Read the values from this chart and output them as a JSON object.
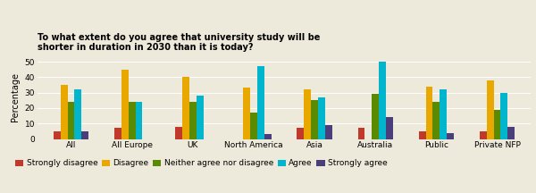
{
  "title": "To what extent do you agree that university study will be\nshorter in duration in 2030 than it is today?",
  "ylabel": "Percentage",
  "categories": [
    "All",
    "All Europe",
    "UK",
    "North America",
    "Asia",
    "Australia",
    "Public",
    "Private NFP"
  ],
  "series": {
    "Strongly disagree": [
      5,
      7,
      8,
      0,
      7,
      7,
      5,
      5
    ],
    "Disagree": [
      35,
      45,
      40,
      33,
      32,
      0,
      34,
      38
    ],
    "Neither agree nor disagree": [
      24,
      24,
      24,
      17,
      25,
      29,
      24,
      19
    ],
    "Agree": [
      32,
      24,
      28,
      47,
      27,
      50,
      32,
      30
    ],
    "Strongly agree": [
      5,
      0,
      0,
      3,
      9,
      14,
      4,
      8
    ]
  },
  "colors": {
    "Strongly disagree": "#c0392b",
    "Disagree": "#e8a800",
    "Neither agree nor disagree": "#5a8a00",
    "Agree": "#00b5cc",
    "Strongly agree": "#4a3f7a"
  },
  "ylim": [
    0,
    55
  ],
  "yticks": [
    0,
    10,
    20,
    30,
    40,
    50
  ],
  "background_color": "#eeeadb",
  "title_fontsize": 7,
  "legend_fontsize": 6.5,
  "tick_fontsize": 6.5,
  "ylabel_fontsize": 7
}
